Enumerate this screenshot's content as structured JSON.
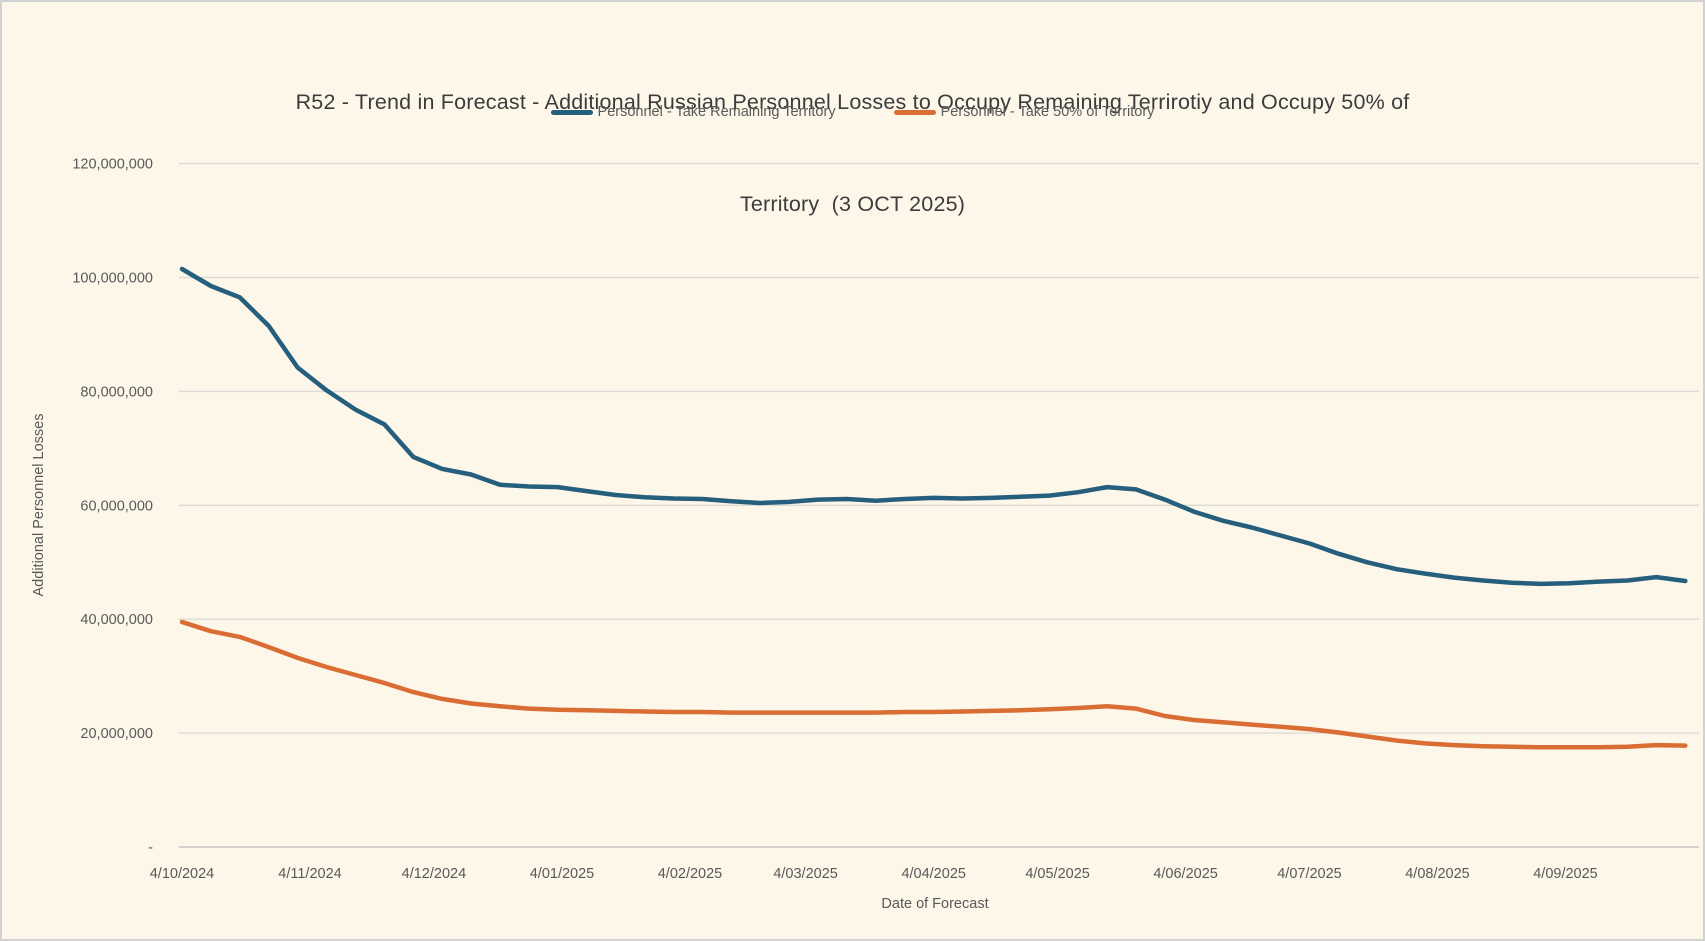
{
  "frame": {
    "background": "#FDF7EA",
    "border_color": "#D2D2D2"
  },
  "title": {
    "line1": "R52 - Trend in Forecast - Additional Russian Personnel Losses to Occupy Remaining Terrirotiy and Occupy 50% of",
    "line2": "Territory  (3 OCT 2025)"
  },
  "legend": {
    "items": [
      {
        "label": "Personnel - Take Remaining Territory",
        "color": "#265E7D"
      },
      {
        "label": "Personnel - Take 50% of Territory",
        "color": "#D96D33"
      }
    ]
  },
  "y_axis": {
    "title": "Additional Personnel Losses",
    "tick_labels": [
      "120,000,000",
      "100,000,000",
      "80,000,000",
      "60,000,000",
      "40,000,000",
      "20,000,000",
      "-"
    ],
    "tick_values": [
      120000000,
      100000000,
      80000000,
      60000000,
      40000000,
      20000000,
      0
    ]
  },
  "x_axis": {
    "title": "Date of Forecast",
    "tick_labels": [
      "4/10/2024",
      "4/11/2024",
      "4/12/2024",
      "4/01/2025",
      "4/02/2025",
      "4/03/2025",
      "4/04/2025",
      "4/05/2025",
      "4/06/2025",
      "4/07/2025",
      "4/08/2025",
      "4/09/2025"
    ],
    "tick_day_offsets": [
      0,
      31,
      61,
      92,
      123,
      151,
      182,
      212,
      243,
      273,
      304,
      335
    ]
  },
  "chart_data": {
    "type": "line",
    "title": "R52 - Trend in Forecast - Additional Russian Personnel Losses to Occupy Remaining Terrirotiy and Occupy 50% of Territory (3 OCT 2025)",
    "xlabel": "Date of Forecast",
    "ylabel": "Additional Personnel Losses",
    "ylim": [
      0,
      120000000
    ],
    "grid": true,
    "legend_position": "top",
    "x_start_date_label": "4/10/2024",
    "x_end_date_label": "3 OCT 2025",
    "x_cadence": "weekly",
    "x_day_offsets": [
      0,
      7,
      14,
      21,
      28,
      35,
      42,
      49,
      56,
      63,
      70,
      77,
      84,
      91,
      98,
      105,
      112,
      119,
      126,
      133,
      140,
      147,
      154,
      161,
      168,
      175,
      182,
      189,
      196,
      203,
      210,
      217,
      224,
      231,
      238,
      245,
      252,
      259,
      266,
      273,
      280,
      287,
      294,
      301,
      308,
      315,
      322,
      329,
      336,
      343,
      350,
      357,
      364
    ],
    "series": [
      {
        "name": "Personnel - Take Remaining Territory",
        "color": "#265E7D",
        "values": [
          101500000,
          98500000,
          96500000,
          91500000,
          84200000,
          80200000,
          76800000,
          74200000,
          68500000,
          66400000,
          65400000,
          63600000,
          63300000,
          63200000,
          62500000,
          61800000,
          61400000,
          61200000,
          61100000,
          60700000,
          60400000,
          60600000,
          61000000,
          61100000,
          60800000,
          61100000,
          61300000,
          61200000,
          61300000,
          61500000,
          61700000,
          62300000,
          63200000,
          62800000,
          61000000,
          58900000,
          57300000,
          56100000,
          54700000,
          53300000,
          51500000,
          50000000,
          48800000,
          48000000,
          47300000,
          46800000,
          46400000,
          46200000,
          46300000,
          46600000,
          46800000,
          47400000,
          46700000
        ]
      },
      {
        "name": "Personnel - Take 50% of Territory",
        "color": "#D96D33",
        "values": [
          39500000,
          37900000,
          36900000,
          35100000,
          33200000,
          31600000,
          30200000,
          28800000,
          27200000,
          26000000,
          25200000,
          24700000,
          24300000,
          24100000,
          24000000,
          23900000,
          23800000,
          23700000,
          23700000,
          23600000,
          23600000,
          23600000,
          23600000,
          23600000,
          23600000,
          23700000,
          23700000,
          23800000,
          23900000,
          24000000,
          24200000,
          24400000,
          24700000,
          24300000,
          23000000,
          22300000,
          21900000,
          21500000,
          21100000,
          20700000,
          20100000,
          19400000,
          18700000,
          18200000,
          17900000,
          17700000,
          17600000,
          17500000,
          17500000,
          17500000,
          17600000,
          17900000,
          17800000
        ]
      }
    ]
  }
}
